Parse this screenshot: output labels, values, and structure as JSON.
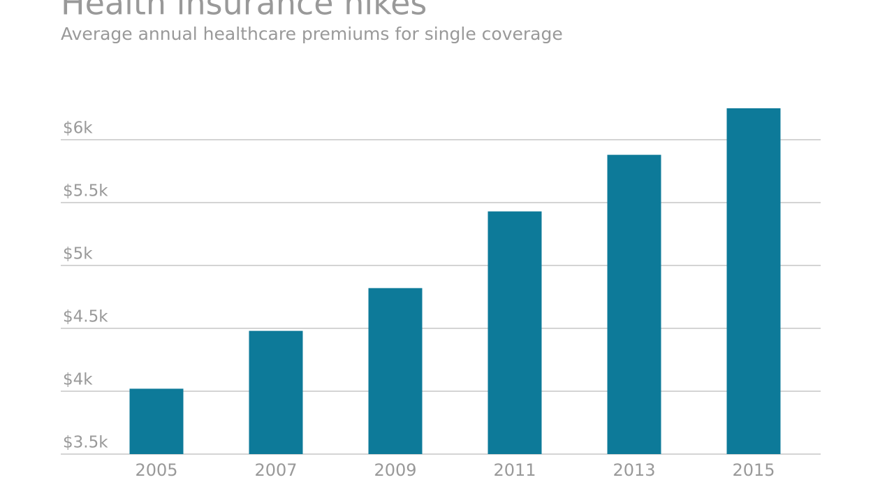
{
  "chart_data": {
    "type": "bar",
    "title": "Health insurance hikes",
    "subtitle": "Average annual healthcare premiums for single coverage",
    "categories": [
      "2005",
      "2007",
      "2009",
      "2011",
      "2013",
      "2015"
    ],
    "values": [
      4020,
      4480,
      4820,
      5430,
      5880,
      6250
    ],
    "color": "#0d7a99",
    "ylim": [
      3500,
      6250
    ],
    "yticks": [
      {
        "value": 3500,
        "label": "$3.5k"
      },
      {
        "value": 4000,
        "label": "$4k"
      },
      {
        "value": 4500,
        "label": "$4.5k"
      },
      {
        "value": 5000,
        "label": "$5k"
      },
      {
        "value": 5500,
        "label": "$5.5k"
      },
      {
        "value": 6000,
        "label": "$6k"
      }
    ],
    "grid": true
  }
}
